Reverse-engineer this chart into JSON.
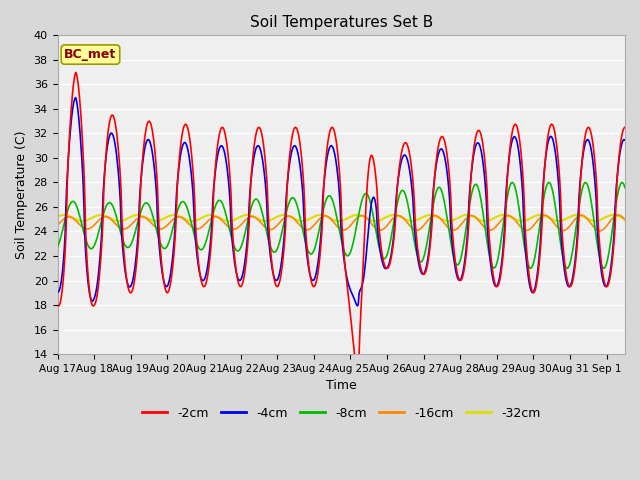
{
  "title": "Soil Temperatures Set B",
  "xlabel": "Time",
  "ylabel": "Soil Temperature (C)",
  "ylim": [
    14,
    40
  ],
  "yticks": [
    14,
    16,
    18,
    20,
    22,
    24,
    26,
    28,
    30,
    32,
    34,
    36,
    38,
    40
  ],
  "annotation": "BC_met",
  "annotation_bg": "#FFFF99",
  "annotation_border": "#999900",
  "annotation_text_color": "#880000",
  "series_colors": {
    "-2cm": "#FF0000",
    "-4cm": "#0000EE",
    "-8cm": "#00BB00",
    "-16cm": "#FF8800",
    "-32cm": "#DDDD00"
  },
  "legend_labels": [
    "-2cm",
    "-4cm",
    "-8cm",
    "-16cm",
    "-32cm"
  ],
  "background_color": "#D8D8D8",
  "plot_bg_color": "#EFEFEF",
  "grid_color": "#FFFFFF",
  "figsize": [
    6.4,
    4.8
  ],
  "dpi": 100
}
